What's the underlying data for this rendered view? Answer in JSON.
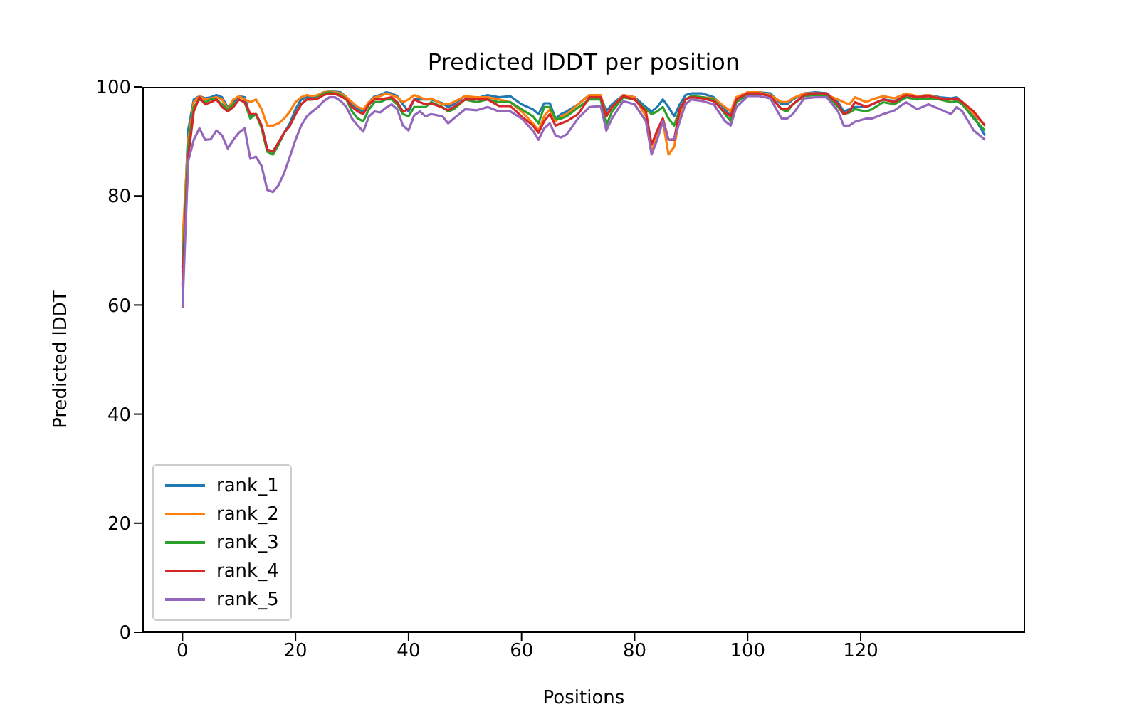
{
  "chart_data": {
    "type": "line",
    "title": "Predicted lDDT per position",
    "xlabel": "Positions",
    "ylabel": "Predicted lDDT",
    "x": [
      0,
      1,
      2,
      3,
      4,
      5,
      6,
      7,
      8,
      9,
      10,
      11,
      12,
      13,
      14,
      15,
      16,
      17,
      18,
      19,
      20,
      21,
      22,
      23,
      24,
      25,
      26,
      27,
      28,
      29,
      30,
      31,
      32,
      33,
      34,
      35,
      36,
      37,
      38,
      39,
      40,
      41,
      42,
      43,
      44,
      46,
      47,
      48,
      50,
      52,
      54,
      56,
      58,
      60,
      62,
      63,
      64,
      65,
      66,
      67,
      68,
      70,
      72,
      74,
      75,
      76,
      78,
      80,
      82,
      83,
      84,
      85,
      86,
      87,
      88,
      89,
      90,
      92,
      94,
      96,
      97,
      98,
      100,
      102,
      104,
      106,
      107,
      108,
      110,
      112,
      114,
      116,
      117,
      118,
      119,
      121,
      122,
      124,
      126,
      128,
      130,
      132,
      134,
      136,
      137,
      138,
      140,
      142
    ],
    "series": [
      {
        "name": "rank_1",
        "color": "#1f77b4",
        "values": [
          66.9,
          92.0,
          97.7,
          98.3,
          97.9,
          98.1,
          98.5,
          98.1,
          96.2,
          97.2,
          98.3,
          98.1,
          94.6,
          95.0,
          92.9,
          88.5,
          88.1,
          89.8,
          91.6,
          93.3,
          95.9,
          97.7,
          98.1,
          98.1,
          98.5,
          99.0,
          99.1,
          99.1,
          99.0,
          98.1,
          96.8,
          95.9,
          95.5,
          97.2,
          98.3,
          98.5,
          99.0,
          98.8,
          98.3,
          96.8,
          95.5,
          97.7,
          97.7,
          97.7,
          97.7,
          97.0,
          96.3,
          96.8,
          98.3,
          97.9,
          98.5,
          98.1,
          98.3,
          96.8,
          95.9,
          95.0,
          97.0,
          97.0,
          94.2,
          95.0,
          95.5,
          96.8,
          98.5,
          98.3,
          95.5,
          96.8,
          98.5,
          98.1,
          96.3,
          95.5,
          96.3,
          97.7,
          96.3,
          94.6,
          96.8,
          98.5,
          98.8,
          98.8,
          98.1,
          95.9,
          94.6,
          97.7,
          99.0,
          99.0,
          98.8,
          96.8,
          96.8,
          97.7,
          98.8,
          99.0,
          98.8,
          97.2,
          95.5,
          95.9,
          96.3,
          96.3,
          96.8,
          97.7,
          97.4,
          98.5,
          98.3,
          98.5,
          98.1,
          97.9,
          98.1,
          97.2,
          94.6,
          91.1
        ]
      },
      {
        "name": "rank_2",
        "color": "#ff7f0e",
        "values": [
          71.5,
          90.0,
          97.2,
          98.3,
          97.7,
          97.9,
          98.1,
          97.7,
          95.9,
          97.7,
          98.3,
          97.7,
          97.2,
          97.7,
          95.9,
          92.9,
          92.9,
          93.3,
          94.2,
          95.5,
          97.2,
          98.1,
          98.5,
          98.3,
          98.5,
          99.0,
          99.1,
          99.0,
          98.8,
          98.1,
          97.2,
          96.3,
          95.9,
          97.2,
          98.1,
          98.3,
          98.8,
          98.5,
          98.1,
          97.2,
          97.7,
          98.5,
          98.1,
          97.7,
          97.9,
          96.8,
          96.8,
          97.2,
          98.3,
          98.1,
          98.1,
          97.7,
          97.2,
          95.5,
          93.3,
          92.0,
          94.6,
          95.9,
          93.7,
          94.6,
          95.0,
          96.8,
          98.5,
          98.5,
          94.6,
          96.3,
          98.5,
          98.1,
          94.6,
          88.1,
          91.1,
          93.7,
          87.6,
          89.0,
          94.6,
          97.7,
          98.3,
          98.1,
          97.9,
          96.3,
          95.5,
          98.1,
          99.0,
          99.0,
          98.5,
          97.2,
          97.2,
          97.9,
          98.8,
          98.8,
          98.5,
          97.7,
          97.2,
          96.8,
          98.1,
          97.2,
          97.7,
          98.3,
          97.9,
          98.8,
          98.3,
          98.5,
          97.9,
          97.7,
          97.9,
          97.2,
          95.0,
          92.9
        ]
      },
      {
        "name": "rank_3",
        "color": "#2ca02c",
        "values": [
          65.8,
          89.0,
          96.3,
          97.7,
          97.2,
          97.7,
          97.7,
          96.8,
          95.9,
          96.8,
          97.7,
          97.2,
          94.2,
          95.0,
          92.4,
          88.1,
          87.6,
          89.4,
          91.6,
          92.9,
          95.0,
          96.8,
          97.7,
          97.7,
          98.1,
          98.8,
          99.0,
          98.8,
          98.5,
          97.7,
          95.5,
          94.2,
          93.7,
          95.9,
          97.2,
          97.2,
          97.7,
          97.7,
          96.8,
          95.0,
          94.6,
          96.3,
          96.3,
          96.3,
          97.2,
          96.3,
          95.5,
          95.9,
          97.7,
          97.2,
          97.7,
          97.2,
          97.2,
          95.9,
          94.6,
          93.3,
          96.3,
          96.3,
          94.2,
          94.2,
          94.6,
          96.2,
          97.7,
          97.7,
          92.9,
          95.5,
          98.1,
          97.7,
          95.9,
          95.0,
          95.5,
          96.3,
          94.2,
          92.9,
          95.9,
          97.7,
          98.3,
          98.1,
          97.7,
          95.0,
          93.7,
          97.2,
          98.5,
          98.8,
          98.3,
          95.9,
          95.5,
          96.8,
          98.3,
          98.5,
          98.5,
          96.3,
          95.0,
          95.3,
          95.9,
          95.5,
          95.9,
          97.2,
          96.8,
          98.1,
          97.7,
          97.9,
          97.7,
          97.2,
          97.4,
          96.8,
          94.2,
          92.0
        ]
      },
      {
        "name": "rank_4",
        "color": "#d62728",
        "values": [
          63.6,
          87.0,
          95.5,
          98.1,
          96.8,
          97.2,
          97.7,
          96.3,
          95.5,
          96.3,
          97.7,
          97.2,
          95.0,
          95.0,
          92.9,
          88.5,
          88.1,
          89.8,
          91.6,
          92.9,
          95.0,
          96.8,
          97.7,
          97.7,
          97.9,
          98.5,
          98.8,
          98.7,
          98.3,
          97.7,
          96.3,
          95.5,
          95.0,
          96.8,
          97.7,
          97.7,
          97.9,
          98.1,
          97.2,
          95.5,
          95.9,
          97.7,
          97.2,
          96.8,
          97.0,
          96.2,
          95.7,
          96.3,
          97.7,
          97.7,
          97.7,
          96.5,
          96.5,
          94.6,
          92.9,
          91.6,
          93.7,
          95.0,
          92.9,
          93.3,
          93.7,
          95.0,
          98.1,
          98.1,
          94.6,
          96.3,
          98.3,
          97.7,
          95.5,
          89.4,
          92.0,
          94.2,
          90.3,
          90.3,
          95.9,
          97.7,
          98.1,
          97.9,
          97.4,
          95.3,
          94.6,
          97.7,
          98.8,
          98.8,
          98.3,
          95.9,
          95.9,
          96.8,
          98.5,
          98.8,
          98.8,
          96.8,
          95.0,
          95.5,
          97.2,
          96.3,
          96.8,
          97.7,
          97.2,
          98.5,
          98.1,
          98.3,
          97.9,
          97.7,
          97.9,
          97.2,
          95.5,
          92.9
        ]
      },
      {
        "name": "rank_5",
        "color": "#9467bd",
        "values": [
          59.4,
          86.3,
          90.3,
          92.4,
          90.3,
          90.4,
          92.0,
          91.1,
          88.7,
          90.3,
          91.6,
          92.4,
          86.8,
          87.2,
          85.5,
          81.1,
          80.7,
          82.0,
          84.2,
          87.2,
          90.3,
          92.9,
          94.6,
          95.5,
          96.3,
          97.4,
          98.1,
          98.1,
          97.4,
          96.3,
          94.2,
          92.9,
          91.8,
          94.6,
          95.5,
          95.3,
          96.2,
          96.8,
          95.9,
          92.9,
          92.0,
          94.8,
          95.5,
          94.6,
          95.0,
          94.6,
          93.3,
          94.2,
          95.9,
          95.7,
          96.3,
          95.5,
          95.5,
          94.2,
          92.0,
          90.3,
          92.4,
          93.3,
          91.1,
          90.7,
          91.3,
          94.2,
          96.3,
          96.5,
          92.0,
          94.2,
          97.4,
          96.8,
          93.7,
          87.6,
          90.3,
          93.7,
          90.3,
          90.4,
          93.7,
          96.8,
          97.7,
          97.4,
          96.8,
          93.7,
          92.9,
          96.3,
          98.3,
          98.3,
          97.9,
          94.2,
          94.2,
          95.0,
          97.9,
          98.1,
          98.1,
          95.5,
          92.9,
          92.9,
          93.6,
          94.2,
          94.2,
          95.0,
          95.7,
          97.2,
          95.9,
          96.8,
          95.9,
          95.0,
          96.3,
          95.5,
          92.0,
          90.3
        ]
      }
    ],
    "xlim": [
      -7.1,
      149.1
    ],
    "xticks": [
      0,
      20,
      40,
      60,
      80,
      100,
      120
    ],
    "ylim": [
      0,
      100
    ],
    "yticks": [
      0,
      20,
      40,
      60,
      80,
      100
    ],
    "grid": false,
    "legend": "bottom left",
    "marker": "none",
    "line_style": "solid"
  }
}
